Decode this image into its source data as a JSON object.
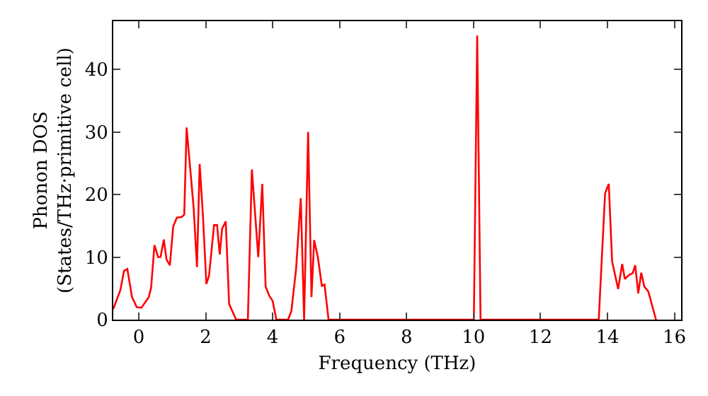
{
  "chart_data": {
    "type": "line",
    "xlabel": "Frequency (THz)",
    "ylabel": "Phonon DOS\n(States/THz·primitive cell)",
    "xlim": [
      -0.76,
      16.2
    ],
    "ylim": [
      0,
      47.7
    ],
    "xticks": [
      0,
      2,
      4,
      6,
      8,
      10,
      12,
      14,
      16
    ],
    "yticks": [
      0,
      10,
      20,
      30,
      40
    ],
    "grid": false,
    "marker": "none",
    "line_style": "solid",
    "series": [
      {
        "color": "#ff0000",
        "x": [
          -0.76,
          -0.55,
          -0.44,
          -0.34,
          -0.2,
          -0.06,
          0.08,
          0.3,
          0.37,
          0.47,
          0.58,
          0.65,
          0.75,
          0.83,
          0.93,
          1.03,
          1.14,
          1.28,
          1.36,
          1.43,
          1.64,
          1.74,
          1.82,
          1.92,
          2.02,
          2.1,
          2.25,
          2.34,
          2.42,
          2.49,
          2.6,
          2.7,
          2.91,
          3.26,
          3.38,
          3.57,
          3.69,
          3.79,
          3.9,
          4.0,
          4.11,
          4.46,
          4.56,
          4.7,
          4.84,
          4.94,
          5.06,
          5.16,
          5.24,
          5.35,
          5.47,
          5.55,
          5.67,
          10.01,
          10.11,
          10.21,
          13.74,
          13.93,
          14.04,
          14.14,
          14.32,
          14.44,
          14.52,
          14.66,
          14.75,
          14.83,
          14.92,
          15.01,
          15.1,
          15.22,
          15.45
        ],
        "values": [
          1.7,
          4.7,
          7.8,
          8.1,
          3.6,
          2,
          1.9,
          3.6,
          5.1,
          11.9,
          10,
          10,
          12.8,
          9.6,
          8.7,
          14.9,
          16.3,
          16.4,
          16.8,
          30.7,
          17.9,
          8.4,
          24.9,
          16.4,
          5.7,
          7,
          15.1,
          15.1,
          10.4,
          14.5,
          15.7,
          2.5,
          0,
          0,
          24,
          10,
          21.7,
          5.3,
          3.8,
          3,
          0,
          0,
          1.4,
          8.1,
          19.4,
          0,
          30,
          3.6,
          12.7,
          10,
          5.4,
          5.6,
          0,
          0,
          45.4,
          0,
          0,
          20.2,
          21.7,
          9.3,
          4.9,
          8.9,
          6.5,
          7.2,
          7.4,
          8.7,
          4.2,
          7.5,
          5.3,
          4.5,
          0
        ]
      }
    ]
  }
}
